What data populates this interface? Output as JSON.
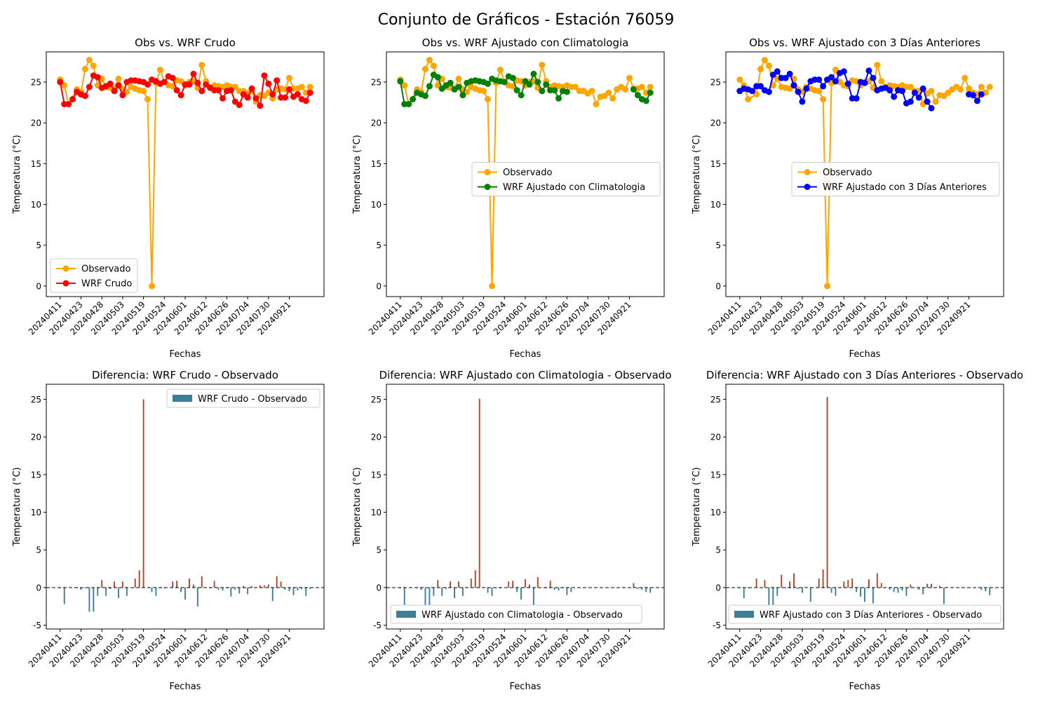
{
  "title": "Conjunto de Gráficos - Estación 76059",
  "tick_labels": [
    "20240411",
    "20240423",
    "20240428",
    "20240503",
    "20240519",
    "20240524",
    "20240601",
    "20240612",
    "20240626",
    "20240704",
    "20240730",
    "20240921"
  ],
  "colors": {
    "observado": "#ffa500",
    "wrf_crudo": "#ff0000",
    "wrf_clima": "#008000",
    "wrf_3dias": "#0000ff",
    "bar_negative": "#3e7f95",
    "bar_positive": "#b5432a",
    "legend_bar": "#3e7f95"
  },
  "chart_data": [
    {
      "type": "line",
      "title": "Obs vs. WRF Crudo",
      "xlabel": "Fechas",
      "ylabel": "Temperatura (°C)",
      "ylim": [
        -1.3,
        28.7
      ],
      "yticks": [
        0,
        5,
        10,
        15,
        20,
        25
      ],
      "legend_placement": "lower-left",
      "series": [
        {
          "name": "Observado",
          "color_key": "observado",
          "x": [
            0,
            1,
            2,
            4,
            5,
            6,
            7,
            8,
            9,
            10,
            11,
            12,
            13,
            14,
            15,
            16,
            17,
            18,
            19,
            20,
            21,
            22,
            23,
            24,
            25,
            26,
            27,
            28,
            29,
            30,
            31,
            32,
            33,
            34,
            35,
            36,
            37,
            38,
            39,
            40,
            41,
            42,
            43,
            44,
            45,
            46,
            47,
            48,
            49,
            50,
            51,
            52,
            53,
            54,
            55,
            56,
            57,
            58,
            59,
            60
          ],
          "y": [
            25.3,
            24.6,
            22.3,
            24.1,
            23.8,
            26.6,
            27.7,
            27.0,
            24.6,
            25.4,
            24.4,
            24.3,
            24.2,
            25.4,
            24.1,
            23.8,
            24.4,
            24.2,
            24.0,
            23.9,
            22.9,
            0.0,
            24.9,
            26.5,
            25.0,
            24.6,
            24.5,
            25.2,
            25.1,
            24.6,
            25.0,
            25.1,
            24.3,
            27.1,
            25.1,
            24.4,
            24.6,
            24.5,
            24.4,
            24.6,
            24.4,
            24.4,
            23.9,
            23.9,
            23.6,
            23.9,
            22.6,
            23.4,
            23.3,
            23.7,
            23.0,
            24.1,
            24.2,
            24.1,
            25.5,
            24.2,
            24.2,
            24.4,
            23.7,
            24.4
          ]
        },
        {
          "name": "WRF Crudo",
          "color_key": "wrf_crudo",
          "x": [
            0,
            1,
            2,
            3,
            4,
            5,
            6,
            7,
            8,
            9,
            10,
            11,
            12,
            13,
            14,
            15,
            16,
            17,
            18,
            19,
            20,
            21,
            22,
            23,
            24,
            25,
            26,
            27,
            28,
            29,
            30,
            31,
            32,
            33,
            34,
            35,
            36,
            37,
            38,
            39,
            40,
            41,
            42,
            43,
            44,
            45,
            46,
            47,
            48,
            49,
            50,
            51,
            52,
            53,
            54,
            55,
            56,
            57,
            58,
            59,
            60
          ],
          "y": [
            25.0,
            22.3,
            22.3,
            22.9,
            23.8,
            23.5,
            23.3,
            24.4,
            25.8,
            25.6,
            24.3,
            24.5,
            24.8,
            23.9,
            24.6,
            23.4,
            25.0,
            25.2,
            25.2,
            25.1,
            25.0,
            24.7,
            25.3,
            25.1,
            24.8,
            25.0,
            25.7,
            25.5,
            24.0,
            23.4,
            24.7,
            24.7,
            26.0,
            24.9,
            23.9,
            24.7,
            24.3,
            24.0,
            24.0,
            23.0,
            23.9,
            24.0,
            22.6,
            22.2,
            23.5,
            23.1,
            24.2,
            23.0,
            22.1,
            25.8,
            24.8,
            23.5,
            25.2,
            23.1,
            23.1,
            24.1,
            23.2,
            23.5,
            22.9,
            22.7,
            23.7
          ]
        }
      ]
    },
    {
      "type": "line",
      "title": "Obs vs. WRF Ajustado con Climatologia",
      "xlabel": "Fechas",
      "ylabel": "Temperatura (°C)",
      "ylim": [
        -1.3,
        28.7
      ],
      "yticks": [
        0,
        5,
        10,
        15,
        20,
        25
      ],
      "legend_placement": "center-right",
      "series": [
        {
          "name": "Observado",
          "color_key": "observado",
          "x": [
            0,
            1,
            2,
            4,
            5,
            6,
            7,
            8,
            9,
            10,
            11,
            12,
            13,
            14,
            15,
            16,
            17,
            18,
            19,
            20,
            21,
            22,
            23,
            24,
            25,
            26,
            27,
            28,
            29,
            30,
            31,
            32,
            33,
            34,
            35,
            36,
            37,
            38,
            39,
            40,
            41,
            42,
            43,
            44,
            45,
            46,
            47,
            48,
            49,
            50,
            51,
            52,
            53,
            54,
            55,
            56,
            57,
            58,
            59,
            60
          ],
          "y": [
            25.3,
            24.6,
            22.3,
            24.1,
            23.8,
            26.6,
            27.7,
            27.0,
            24.6,
            25.4,
            24.4,
            24.3,
            24.2,
            25.4,
            24.1,
            23.8,
            24.4,
            24.2,
            24.0,
            23.9,
            22.9,
            0.0,
            24.9,
            26.5,
            25.0,
            24.6,
            24.5,
            25.2,
            25.1,
            24.6,
            25.0,
            25.1,
            24.3,
            27.1,
            25.1,
            24.4,
            24.6,
            24.5,
            24.4,
            24.6,
            24.4,
            24.4,
            23.9,
            23.9,
            23.6,
            23.9,
            22.3,
            23.2,
            23.3,
            23.7,
            23.0,
            24.1,
            24.4,
            24.1,
            25.5,
            24.2,
            24.2,
            24.4,
            23.7,
            24.4
          ]
        },
        {
          "name": "WRF Ajustado con Climatologia",
          "color_key": "wrf_clima",
          "x": [
            0,
            1,
            2,
            3,
            4,
            5,
            6,
            7,
            8,
            9,
            10,
            11,
            12,
            13,
            14,
            15,
            16,
            17,
            18,
            19,
            20,
            21,
            22,
            23,
            24,
            25,
            26,
            27,
            28,
            29,
            30,
            31,
            32,
            33,
            34,
            35,
            36,
            37,
            38,
            39,
            40,
            41,
            42,
            43,
            44,
            45,
            46,
            47,
            48,
            49,
            50,
            51,
            52,
            53,
            54,
            55,
            56,
            57,
            58,
            59,
            60
          ],
          "y": [
            25.1,
            22.3,
            22.3,
            22.9,
            23.7,
            23.5,
            23.3,
            24.5,
            25.9,
            25.6,
            24.2,
            24.6,
            24.9,
            24.1,
            24.4,
            23.4,
            24.9,
            25.1,
            25.2,
            25.1,
            25.0,
            24.8,
            25.4,
            25.2,
            25.1,
            25.0,
            25.7,
            25.5,
            24.0,
            23.4,
            25.1,
            24.7,
            26.0,
            25.0,
            23.9,
            24.7,
            24.0,
            24.0,
            23.0,
            23.9,
            23.8,
            null,
            null,
            null,
            null,
            null,
            null,
            null,
            null,
            null,
            null,
            null,
            null,
            null,
            null,
            null,
            24.1,
            23.4,
            22.9,
            22.7,
            23.7
          ]
        }
      ]
    },
    {
      "type": "line",
      "title": "Obs vs. WRF Ajustado con 3 Días Anteriores",
      "xlabel": "Fechas",
      "ylabel": "Temperatura (°C)",
      "ylim": [
        -1.3,
        28.7
      ],
      "yticks": [
        0,
        5,
        10,
        15,
        20,
        25
      ],
      "legend_placement": "center-right",
      "series": [
        {
          "name": "Observado",
          "color_key": "observado",
          "x": [
            0,
            1,
            2,
            4,
            5,
            6,
            7,
            8,
            9,
            10,
            11,
            12,
            13,
            14,
            15,
            16,
            17,
            18,
            19,
            20,
            21,
            22,
            23,
            24,
            25,
            26,
            27,
            28,
            29,
            30,
            31,
            32,
            33,
            34,
            35,
            36,
            37,
            38,
            39,
            40,
            41,
            42,
            43,
            44,
            45,
            46,
            47,
            48,
            49,
            50,
            51,
            52,
            53,
            54,
            55,
            56,
            57,
            58,
            59,
            60
          ],
          "y": [
            25.3,
            24.6,
            22.9,
            23.5,
            26.6,
            27.7,
            27.0,
            24.6,
            25.4,
            24.4,
            24.3,
            24.2,
            25.4,
            24.1,
            23.8,
            24.4,
            24.2,
            24.0,
            23.9,
            22.9,
            0.0,
            24.9,
            26.5,
            25.0,
            24.6,
            24.5,
            25.2,
            25.1,
            24.6,
            25.0,
            25.1,
            24.3,
            27.1,
            25.1,
            24.4,
            24.6,
            24.5,
            24.4,
            24.6,
            24.4,
            24.4,
            23.9,
            23.9,
            22.3,
            23.6,
            23.9,
            22.6,
            23.4,
            23.3,
            23.7,
            24.1,
            24.4,
            24.1,
            25.5,
            24.2,
            23.7,
            23.5,
            24.4,
            23.7,
            24.4
          ]
        },
        {
          "name": "WRF Ajustado con 3 Días Anteriores",
          "color_key": "wrf_3dias",
          "x": [
            0,
            1,
            2,
            3,
            4,
            5,
            6,
            7,
            8,
            9,
            10,
            11,
            12,
            13,
            14,
            15,
            16,
            17,
            18,
            19,
            20,
            21,
            22,
            23,
            24,
            25,
            26,
            27,
            28,
            29,
            30,
            31,
            32,
            33,
            34,
            35,
            36,
            37,
            38,
            39,
            40,
            41,
            42,
            43,
            44,
            45,
            46,
            47,
            48,
            49,
            55,
            56,
            57,
            58,
            59
          ],
          "y": [
            23.9,
            24.2,
            24.1,
            23.9,
            24.5,
            24.5,
            24.0,
            23.8,
            25.9,
            26.3,
            25.5,
            25.5,
            26.0,
            24.6,
            23.8,
            22.6,
            24.2,
            25.1,
            25.3,
            25.3,
            24.5,
            25.3,
            25.6,
            25.1,
            26.1,
            26.3,
            24.8,
            23.0,
            23.0,
            25.0,
            24.9,
            26.4,
            25.5,
            24.0,
            24.2,
            24.3,
            24.0,
            23.2,
            24.0,
            23.9,
            22.4,
            22.6,
            23.7,
            23.1,
            24.2,
            22.6,
            21.8,
            null,
            null,
            null,
            23.5,
            23.4,
            22.7,
            23.5,
            null
          ]
        }
      ]
    },
    {
      "type": "bar",
      "title": "Diferencia: WRF Crudo - Observado",
      "xlabel": "Fechas",
      "ylabel": "Temperatura (°C)",
      "ylim": [
        -5.5,
        27.0
      ],
      "yticks": [
        -5,
        0,
        5,
        10,
        15,
        20,
        25
      ],
      "legend_placement": "top-right",
      "legend_label": "WRF Crudo - Observado",
      "values": [
        -0.1,
        -2.2,
        0.0,
        0.0,
        -0.1,
        -0.3,
        -0.1,
        -3.2,
        -3.2,
        -1.1,
        1.0,
        -1.1,
        -0.2,
        0.8,
        -1.4,
        0.8,
        -1.1,
        0.0,
        1.2,
        2.3,
        25.0,
        0.0,
        -0.6,
        -1.1,
        -0.1,
        -0.1,
        0.0,
        0.8,
        0.9,
        -0.6,
        -1.6,
        1.2,
        0.4,
        -2.5,
        1.5,
        0.0,
        -0.1,
        0.9,
        -0.3,
        -0.4,
        -0.1,
        -1.2,
        -0.3,
        -0.8,
        0.2,
        -0.9,
        0.2,
        0.0,
        0.3,
        0.3,
        0.4,
        -1.8,
        1.5,
        0.8,
        -0.3,
        -0.5,
        -1.0,
        -0.4,
        -0.2,
        -1.1,
        -0.2
      ]
    },
    {
      "type": "bar",
      "title": "Diferencia: WRF Ajustado con Climatologia - Observado",
      "xlabel": "Fechas",
      "ylabel": "Temperatura (°C)",
      "ylim": [
        -5.5,
        27.0
      ],
      "yticks": [
        -5,
        0,
        5,
        10,
        15,
        20,
        25
      ],
      "legend_placement": "lower-left",
      "legend_label": "WRF Ajustado con Climatologia - Observado",
      "values": [
        -0.1,
        -2.3,
        0.0,
        0.0,
        -0.1,
        -0.3,
        -2.5,
        -2.5,
        -1.1,
        1.0,
        -1.1,
        -0.2,
        0.8,
        -1.4,
        0.8,
        -1.1,
        0.0,
        1.2,
        2.3,
        25.1,
        0.0,
        -0.7,
        -1.1,
        -0.1,
        -0.1,
        0.0,
        0.8,
        0.9,
        -0.6,
        -1.6,
        1.1,
        0.4,
        -2.4,
        1.4,
        0.0,
        -0.1,
        0.9,
        -0.3,
        -0.4,
        -0.1,
        -1.0,
        -0.6,
        0.0,
        0.0,
        0.0,
        0.0,
        0.0,
        0.0,
        0.0,
        0.0,
        0.0,
        0.0,
        0.0,
        0.0,
        0.0,
        0.0,
        0.6,
        -0.2,
        -0.3,
        -0.6,
        -0.7
      ]
    },
    {
      "type": "bar",
      "title": "Diferencia: WRF Ajustado con 3 Días Anteriores - Observado",
      "xlabel": "Fechas",
      "ylabel": "Temperatura (°C)",
      "ylim": [
        -5.5,
        27.0
      ],
      "yticks": [
        -5,
        0,
        5,
        10,
        15,
        20,
        25
      ],
      "legend_placement": "lower-center",
      "legend_label": "WRF Ajustado con 3 Días Anteriores - Observado",
      "values": [
        -0.1,
        -1.4,
        -0.1,
        0.0,
        1.2,
        0.0,
        1.0,
        -2.4,
        -2.4,
        -1.1,
        1.7,
        -0.1,
        0.8,
        1.9,
        -0.2,
        -0.7,
        0.0,
        -1.9,
        0.0,
        1.2,
        2.4,
        25.3,
        -0.7,
        -1.1,
        0.0,
        0.8,
        1.0,
        1.2,
        -0.6,
        -1.2,
        -1.9,
        1.1,
        -2.1,
        1.9,
        0.6,
        0.0,
        -0.3,
        -0.6,
        -0.7,
        -0.4,
        -1.1,
        0.4,
        0.0,
        -0.3,
        -0.9,
        0.5,
        0.5,
        0.0,
        0.2,
        -2.2,
        0.0,
        0.0,
        0.0,
        0.0,
        0.0,
        0.0,
        0.0,
        0.0,
        -0.3,
        -0.5,
        -1.0
      ]
    }
  ]
}
